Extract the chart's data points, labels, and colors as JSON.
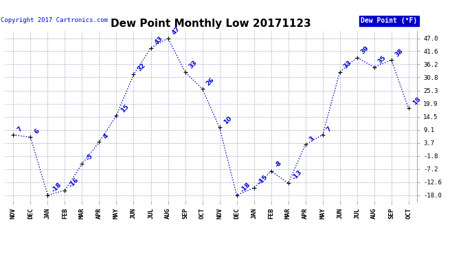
{
  "title": "Dew Point Monthly Low 20171123",
  "copyright": "Copyright 2017 Cartronics.com",
  "legend_label": "Dew Point (°F)",
  "x_labels": [
    "NOV",
    "DEC",
    "JAN",
    "FEB",
    "MAR",
    "APR",
    "MAY",
    "JUN",
    "JUL",
    "AUG",
    "SEP",
    "OCT",
    "NOV",
    "DEC",
    "JAN",
    "FEB",
    "MAR",
    "APR",
    "MAY",
    "JUN",
    "JUL",
    "AUG",
    "SEP",
    "OCT"
  ],
  "y_values": [
    7,
    6,
    -18,
    -16,
    -5,
    4,
    15,
    32,
    43,
    47,
    33,
    26,
    10,
    -18,
    -15,
    -8,
    -13,
    3,
    7,
    33,
    39,
    35,
    38,
    18
  ],
  "y_ticks": [
    47.0,
    41.6,
    36.2,
    30.8,
    25.3,
    19.9,
    14.5,
    9.1,
    3.7,
    -1.8,
    -7.2,
    -12.6,
    -18.0
  ],
  "ylim": [
    -20.5,
    50.0
  ],
  "line_color": "#0000cc",
  "marker_color": "#000000",
  "bg_color": "#ffffff",
  "grid_color": "#aaaacc",
  "title_fontsize": 11,
  "label_fontsize": 6.5,
  "annotation_fontsize": 6.5,
  "legend_bg": "#0000cc",
  "legend_text_color": "#ffffff"
}
